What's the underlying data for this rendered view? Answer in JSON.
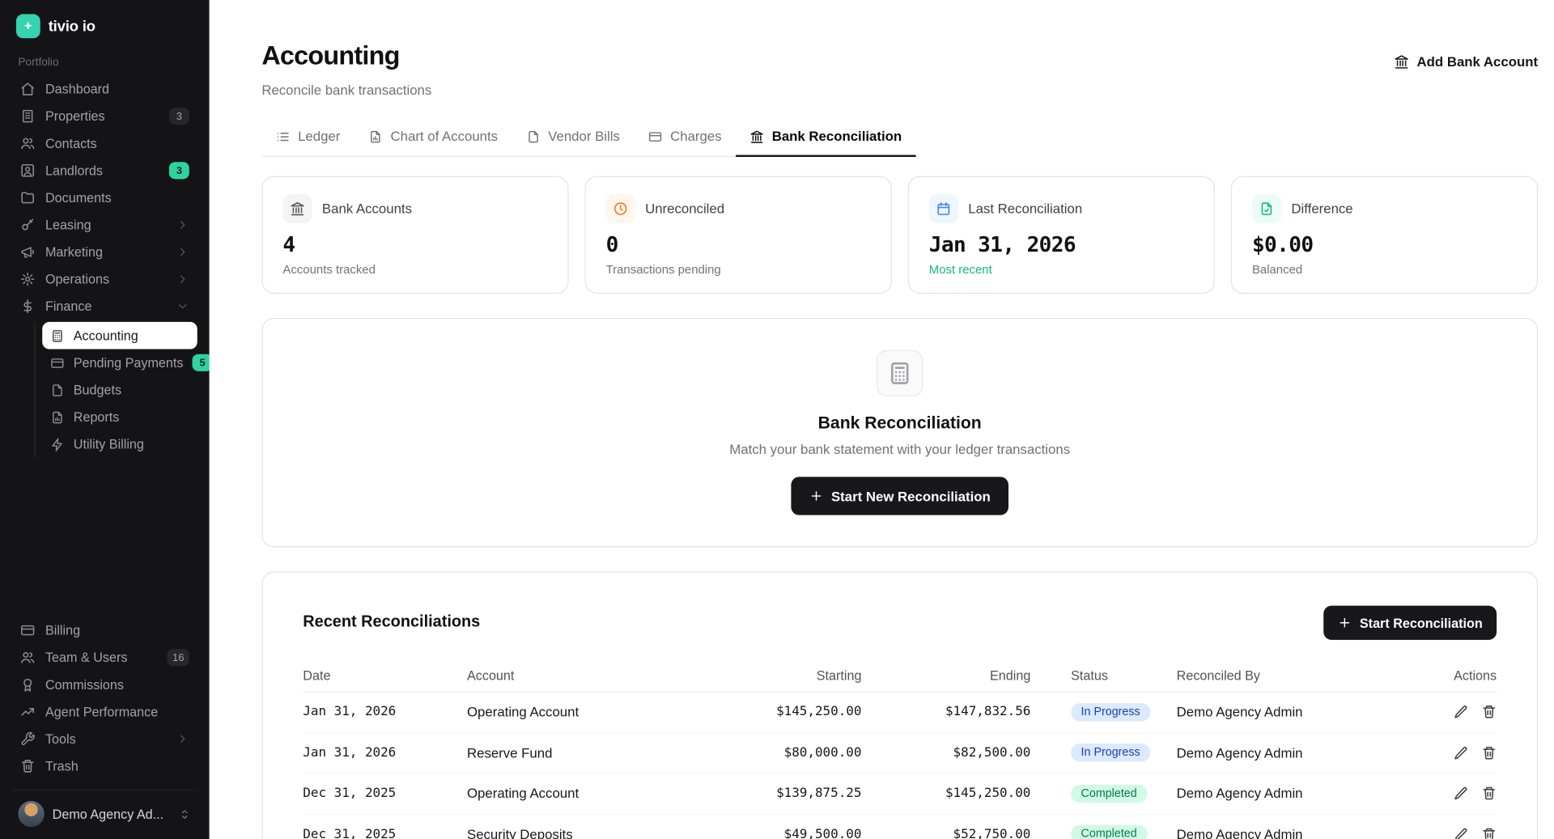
{
  "app": {
    "name": "tivio io"
  },
  "sidebar": {
    "section_label": "Portfolio",
    "items": [
      {
        "label": "Dashboard"
      },
      {
        "label": "Properties",
        "badge": "3"
      },
      {
        "label": "Contacts"
      },
      {
        "label": "Landlords",
        "badge": "3"
      },
      {
        "label": "Documents"
      },
      {
        "label": "Leasing"
      },
      {
        "label": "Marketing"
      },
      {
        "label": "Operations"
      },
      {
        "label": "Finance"
      }
    ],
    "finance_children": [
      {
        "label": "Accounting",
        "active": true
      },
      {
        "label": "Pending Payments",
        "badge": "5"
      },
      {
        "label": "Budgets"
      },
      {
        "label": "Reports"
      },
      {
        "label": "Utility Billing"
      }
    ],
    "bottom_items": [
      {
        "label": "Billing"
      },
      {
        "label": "Team & Users",
        "badge": "16"
      },
      {
        "label": "Commissions"
      },
      {
        "label": "Agent Performance"
      },
      {
        "label": "Tools"
      },
      {
        "label": "Trash"
      }
    ],
    "user": {
      "name": "Demo Agency Ad..."
    }
  },
  "header": {
    "title": "Accounting",
    "subtitle": "Reconcile bank transactions",
    "add_bank_account_label": "Add Bank Account"
  },
  "tabs": [
    {
      "label": "Ledger"
    },
    {
      "label": "Chart of Accounts"
    },
    {
      "label": "Vendor Bills"
    },
    {
      "label": "Charges"
    },
    {
      "label": "Bank Reconciliation",
      "active": true
    }
  ],
  "stats": [
    {
      "label": "Bank Accounts",
      "value": "4",
      "sub": "Accounts tracked"
    },
    {
      "label": "Unreconciled",
      "value": "0",
      "sub": "Transactions pending"
    },
    {
      "label": "Last Reconciliation",
      "value": "Jan 31, 2026",
      "sub": "Most recent"
    },
    {
      "label": "Difference",
      "value": "$0.00",
      "sub": "Balanced"
    }
  ],
  "empty_state": {
    "title": "Bank Reconciliation",
    "subtitle": "Match your bank statement with your ledger transactions",
    "button_label": "Start New Reconciliation"
  },
  "recent": {
    "title": "Recent Reconciliations",
    "button_label": "Start Reconciliation",
    "columns": [
      "Date",
      "Account",
      "Starting",
      "Ending",
      "Status",
      "Reconciled By",
      "Actions"
    ],
    "rows": [
      {
        "date": "Jan 31, 2026",
        "account": "Operating Account",
        "starting": "$145,250.00",
        "ending": "$147,832.56",
        "status": "In Progress",
        "by": "Demo Agency Admin"
      },
      {
        "date": "Jan 31, 2026",
        "account": "Reserve Fund",
        "starting": "$80,000.00",
        "ending": "$82,500.00",
        "status": "In Progress",
        "by": "Demo Agency Admin"
      },
      {
        "date": "Dec 31, 2025",
        "account": "Operating Account",
        "starting": "$139,875.25",
        "ending": "$145,250.00",
        "status": "Completed",
        "by": "Demo Agency Admin"
      },
      {
        "date": "Dec 31, 2025",
        "account": "Security Deposits",
        "starting": "$49,500.00",
        "ending": "$52,750.00",
        "status": "Completed",
        "by": "Demo Agency Admin"
      }
    ]
  },
  "colors": {
    "accent_teal": "#2dd4a0",
    "status_in_progress_bg": "#dbeafe",
    "status_in_progress_text": "#1e40af",
    "status_completed_bg": "#d1fae5",
    "status_completed_text": "#047857",
    "sidebar_bg": "#141416",
    "primary_button_bg": "#18181b"
  }
}
